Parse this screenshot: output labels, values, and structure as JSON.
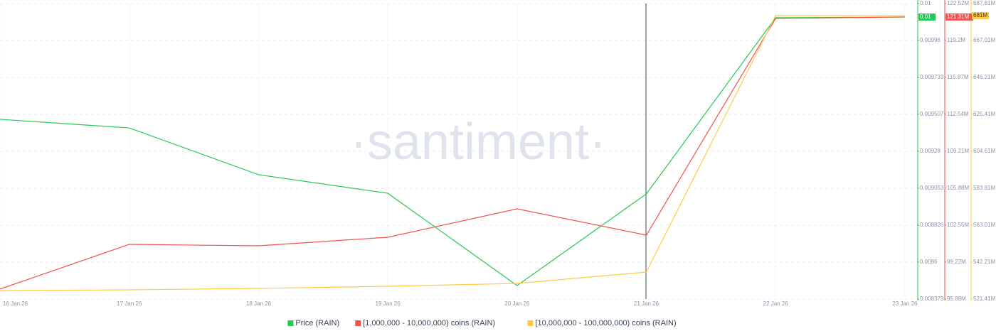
{
  "chart_data": {
    "type": "line",
    "watermark": "·santiment·",
    "x": [
      "16 Jan 26",
      "17 Jan 26",
      "18 Jan 26",
      "19 Jan 26",
      "20 Jan 26",
      "21 Jan 26",
      "22 Jan 26",
      "23 Jan 26"
    ],
    "series": [
      {
        "name": "Price (RAIN)",
        "color": "#26c953",
        "axis": "y",
        "values": [
          0.009476,
          0.009423,
          0.009136,
          0.009022,
          0.008456,
          0.009018,
          0.010099,
          0.010103
        ],
        "value_labels": [
          null,
          null,
          null,
          null,
          null,
          null,
          null,
          "0.01"
        ]
      },
      {
        "name": "[1,000,000 - 10,000,000) coins (RAIN)",
        "color": "#ef5350",
        "axis": "y2",
        "values": [
          96790000,
          100820000,
          100690000,
          101460000,
          104020000,
          101650000,
          121180000,
          121310000
        ],
        "value_labels": [
          null,
          null,
          null,
          null,
          null,
          null,
          null,
          "121.31M"
        ]
      },
      {
        "name": "[10,000,000 - 100,000,000) coins (RAIN)",
        "color": "#ffcb47",
        "axis": "y3",
        "values": [
          526210000,
          526610000,
          527410000,
          528610000,
          530210000,
          536610000,
          681010000,
          681000000
        ],
        "value_labels": [
          null,
          null,
          null,
          null,
          null,
          null,
          null,
          "681M"
        ]
      }
    ],
    "ylim": [
      0.008373,
      0.010186
    ],
    "yticks": [
      0.008373,
      0.0086,
      0.008826,
      0.009053,
      0.00928,
      0.009507,
      0.009733,
      0.00996,
      {
        "value": 0.010186,
        "label": "0.01"
      }
    ],
    "y2lim": [
      95890000,
      122520000
    ],
    "y2ticks": [
      {
        "value": 95890000,
        "label": "95.89M"
      },
      {
        "value": 99220000,
        "label": "99.22M"
      },
      {
        "value": 102550000,
        "label": "102.55M"
      },
      {
        "value": 105880000,
        "label": "105.88M"
      },
      {
        "value": 109210000,
        "label": "109.21M"
      },
      {
        "value": 112540000,
        "label": "112.54M"
      },
      {
        "value": 115870000,
        "label": "115.87M"
      },
      {
        "value": 119200000,
        "label": "119.2M"
      },
      {
        "value": 122520000,
        "label": "122.52M"
      }
    ],
    "y3lim": [
      521410000,
      687810000
    ],
    "y3ticks": [
      {
        "value": 521410000,
        "label": "521.41M"
      },
      {
        "value": 542210000,
        "label": "542.21M"
      },
      {
        "value": 563010000,
        "label": "563.01M"
      },
      {
        "value": 583810000,
        "label": "583.81M"
      },
      {
        "value": 604610000,
        "label": "604.61M"
      },
      {
        "value": 625410000,
        "label": "625.41M"
      },
      {
        "value": 646210000,
        "label": "646.21M"
      },
      {
        "value": 667010000,
        "label": "667.01M"
      },
      {
        "value": 687810000,
        "label": "687.81M"
      }
    ],
    "grid": true,
    "legend": "bottom"
  }
}
